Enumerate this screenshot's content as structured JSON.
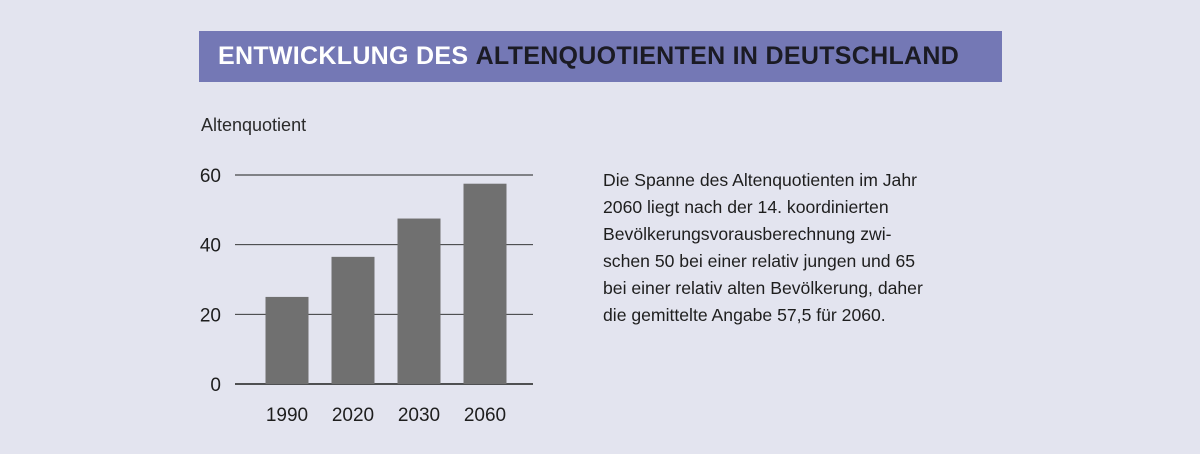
{
  "header": {
    "title_part1": "ENTWICKLUNG DES",
    "title_part2": "ALTENQUOTIENTEN IN DEUTSCHLAND"
  },
  "description": {
    "lines": [
      "Die Spanne des Altenquotienten im Jahr",
      "2060 liegt nach der 14. koordinierten",
      "Bevölkerungsvorausberechnung zwi-",
      "schen 50 bei einer relativ jungen und 65",
      "bei einer relativ alten Bevölkerung, daher",
      "die gemittelte Angabe 57,5 für 2060."
    ]
  },
  "colors": {
    "background": "#e3e4ef",
    "title_bar": "#7478b5",
    "bar": "#707070"
  },
  "chart_data": {
    "type": "bar",
    "title": "",
    "xlabel": "",
    "ylabel": "Altenquotient",
    "categories": [
      "1990",
      "2020",
      "2030",
      "2060"
    ],
    "values": [
      25,
      36.5,
      47.5,
      57.5
    ],
    "ylim": [
      0,
      60
    ],
    "yticks": [
      0,
      20,
      40,
      60
    ],
    "grid": true
  }
}
